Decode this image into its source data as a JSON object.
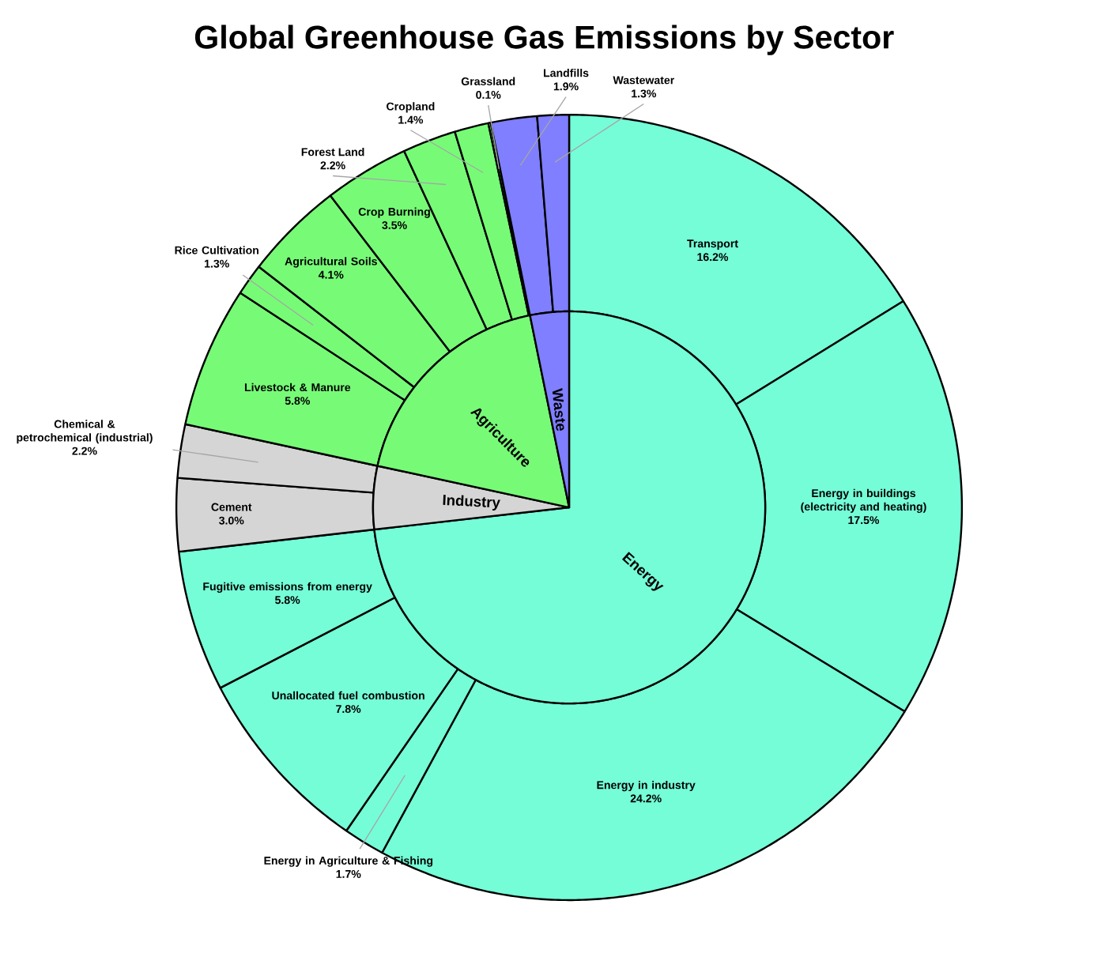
{
  "chart_data": [
    {
      "type": "donut",
      "title": "Global Greenhouse Gas Emissions by Sector",
      "categories": [
        "Transport",
        "Energy in buildings (electricity and heating)",
        "Energy in industry",
        "Energy in Agriculture & Fishing",
        "Unallocated fuel combustion",
        "Fugitive emissions from energy",
        "Cement",
        "Chemical & petrochemical (industrial)",
        "Livestock & Manure",
        "Rice Cultivation",
        "Agricultural Soils",
        "Crop Burning",
        "Forest Land",
        "Cropland",
        "Grassland",
        "Landfills",
        "Wastewater"
      ],
      "values": [
        16.2,
        17.5,
        24.2,
        1.7,
        7.8,
        5.8,
        3.0,
        2.2,
        5.8,
        1.3,
        4.1,
        3.5,
        2.2,
        1.4,
        0.1,
        1.9,
        1.3
      ],
      "value_labels": [
        "16.2%",
        "17.5%",
        "24.2%",
        "1.7%",
        "7.8%",
        "5.8%",
        "3.0%",
        "2.2%",
        "5.8%",
        "1.3%",
        "4.1%",
        "3.5%",
        "2.2%",
        "1.4%",
        "0.1%",
        "1.9%",
        "1.3%"
      ],
      "colors": [
        "#75fdd8",
        "#75fdd8",
        "#75fdd8",
        "#75fdd8",
        "#75fdd8",
        "#75fdd8",
        "#d5d5d5",
        "#d5d5d5",
        "#77fb77",
        "#77fb77",
        "#77fb77",
        "#77fb77",
        "#77fb77",
        "#77fb77",
        "#77fb77",
        "#7f7fff",
        "#7f7fff"
      ]
    },
    {
      "type": "pie",
      "categories": [
        "Energy",
        "Industry",
        "Agriculture",
        "Waste"
      ],
      "values": [
        73.2,
        5.2,
        18.4,
        3.2
      ],
      "colors": [
        "#75fdd8",
        "#d5d5d5",
        "#77fb77",
        "#7f7fff"
      ]
    }
  ]
}
